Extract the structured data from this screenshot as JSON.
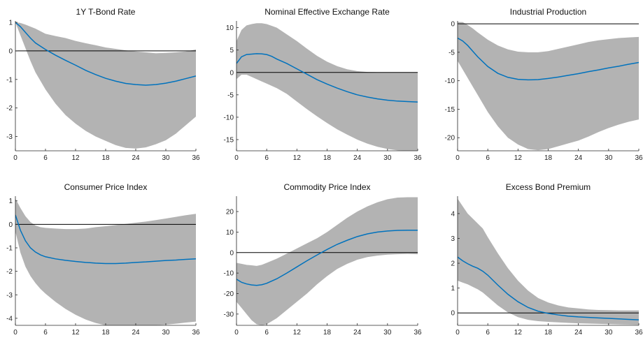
{
  "colors": {
    "band": "#b3b3b3",
    "line": "#0072bd",
    "zero": "#000000"
  },
  "chart_data": [
    {
      "type": "line",
      "title": "1Y T-Bond Rate",
      "xlim": [
        0,
        36
      ],
      "ylim": [
        -3.5,
        1.05
      ],
      "xticks": [
        0,
        6,
        12,
        18,
        24,
        30,
        36
      ],
      "yticks": [
        1,
        0,
        -1,
        -2,
        -3
      ],
      "x": [
        0,
        1,
        2,
        3,
        4,
        6,
        8,
        10,
        12,
        14,
        16,
        18,
        20,
        22,
        24,
        26,
        28,
        30,
        32,
        34,
        36
      ],
      "series": [
        {
          "values": [
            1.0,
            0.85,
            0.65,
            0.45,
            0.28,
            0.05,
            -0.15,
            -0.33,
            -0.5,
            -0.68,
            -0.83,
            -0.96,
            -1.06,
            -1.14,
            -1.18,
            -1.2,
            -1.18,
            -1.13,
            -1.06,
            -0.97,
            -0.88
          ]
        }
      ],
      "band": {
        "lower": [
          1.0,
          0.55,
          0.1,
          -0.35,
          -0.75,
          -1.35,
          -1.85,
          -2.25,
          -2.55,
          -2.8,
          -3.0,
          -3.15,
          -3.3,
          -3.4,
          -3.42,
          -3.38,
          -3.27,
          -3.13,
          -2.9,
          -2.6,
          -2.3
        ],
        "upper": [
          1.0,
          0.98,
          0.92,
          0.85,
          0.78,
          0.6,
          0.52,
          0.45,
          0.35,
          0.27,
          0.2,
          0.12,
          0.07,
          0.02,
          -0.02,
          -0.05,
          -0.08,
          -0.07,
          -0.05,
          -0.02,
          0.05
        ]
      },
      "zero_line": 0
    },
    {
      "type": "line",
      "title": "Nominal Effective Exchange Rate",
      "xlim": [
        0,
        36
      ],
      "ylim": [
        -17.5,
        11.5
      ],
      "xticks": [
        0,
        6,
        12,
        18,
        24,
        30,
        36
      ],
      "yticks": [
        10,
        5,
        0,
        -5,
        -10,
        -15
      ],
      "x": [
        0,
        1,
        2,
        3,
        4,
        5,
        6,
        7,
        8,
        10,
        12,
        14,
        16,
        18,
        20,
        22,
        24,
        26,
        28,
        30,
        32,
        34,
        36
      ],
      "series": [
        {
          "values": [
            2.0,
            3.5,
            4.0,
            4.1,
            4.2,
            4.15,
            4.0,
            3.6,
            3.0,
            2.0,
            0.8,
            -0.4,
            -1.6,
            -2.6,
            -3.5,
            -4.3,
            -5.0,
            -5.5,
            -5.9,
            -6.2,
            -6.4,
            -6.5,
            -6.6
          ]
        }
      ],
      "band": {
        "lower": [
          -1.5,
          -0.5,
          -0.5,
          -1.0,
          -1.5,
          -2.0,
          -2.5,
          -3.0,
          -3.5,
          -4.8,
          -6.5,
          -8.2,
          -9.8,
          -11.3,
          -12.7,
          -13.9,
          -15.0,
          -15.9,
          -16.6,
          -17.1,
          -17.4,
          -17.6,
          -17.8
        ],
        "upper": [
          7.0,
          9.5,
          10.5,
          10.8,
          11.0,
          11.0,
          10.8,
          10.4,
          10.0,
          8.5,
          7.0,
          5.3,
          3.7,
          2.4,
          1.4,
          0.7,
          0.3,
          0.1,
          0.05,
          0.0,
          0.0,
          0.0,
          0.0
        ]
      },
      "zero_line": 0
    },
    {
      "type": "line",
      "title": "Industrial Production",
      "xlim": [
        0,
        36
      ],
      "ylim": [
        -22.3,
        0.5
      ],
      "xticks": [
        0,
        6,
        12,
        18,
        24,
        30,
        36
      ],
      "yticks": [
        0,
        -5,
        -10,
        -15,
        -20
      ],
      "x": [
        0,
        1,
        2,
        3,
        4,
        6,
        8,
        10,
        12,
        14,
        16,
        18,
        20,
        22,
        24,
        26,
        28,
        30,
        32,
        34,
        36
      ],
      "series": [
        {
          "values": [
            -2.5,
            -3.0,
            -3.8,
            -4.8,
            -5.8,
            -7.5,
            -8.7,
            -9.4,
            -9.75,
            -9.85,
            -9.8,
            -9.6,
            -9.35,
            -9.05,
            -8.75,
            -8.4,
            -8.1,
            -7.75,
            -7.45,
            -7.1,
            -6.8
          ]
        }
      ],
      "band": {
        "lower": [
          -6.5,
          -8.0,
          -9.5,
          -11.0,
          -12.5,
          -15.5,
          -18.0,
          -20.0,
          -21.2,
          -22.0,
          -22.2,
          -22.0,
          -21.5,
          -21.0,
          -20.5,
          -19.8,
          -19.0,
          -18.3,
          -17.7,
          -17.2,
          -16.8
        ],
        "upper": [
          0.3,
          0.3,
          -0.2,
          -0.8,
          -1.5,
          -2.8,
          -3.8,
          -4.5,
          -4.9,
          -5.0,
          -5.0,
          -4.8,
          -4.4,
          -4.0,
          -3.6,
          -3.2,
          -2.9,
          -2.7,
          -2.5,
          -2.4,
          -2.3
        ]
      },
      "zero_line": 0
    },
    {
      "type": "line",
      "title": "Consumer Price Index",
      "xlim": [
        0,
        36
      ],
      "ylim": [
        -4.3,
        1.2
      ],
      "xticks": [
        0,
        6,
        12,
        18,
        24,
        30,
        36
      ],
      "yticks": [
        1,
        0,
        -1,
        -2,
        -3,
        -4
      ],
      "x": [
        0,
        1,
        2,
        3,
        4,
        5,
        6,
        8,
        10,
        12,
        14,
        16,
        18,
        20,
        22,
        24,
        26,
        28,
        30,
        32,
        34,
        36
      ],
      "series": [
        {
          "values": [
            0.4,
            -0.25,
            -0.7,
            -1.0,
            -1.18,
            -1.3,
            -1.38,
            -1.47,
            -1.53,
            -1.58,
            -1.62,
            -1.65,
            -1.67,
            -1.67,
            -1.65,
            -1.62,
            -1.6,
            -1.57,
            -1.54,
            -1.52,
            -1.49,
            -1.47
          ]
        }
      ],
      "band": {
        "lower": [
          -0.3,
          -1.2,
          -1.8,
          -2.2,
          -2.5,
          -2.75,
          -2.95,
          -3.3,
          -3.6,
          -3.85,
          -4.05,
          -4.2,
          -4.3,
          -4.35,
          -4.36,
          -4.35,
          -4.33,
          -4.3,
          -4.27,
          -4.23,
          -4.18,
          -4.14
        ],
        "upper": [
          1.1,
          0.7,
          0.35,
          0.1,
          -0.05,
          -0.12,
          -0.15,
          -0.18,
          -0.2,
          -0.2,
          -0.18,
          -0.12,
          -0.08,
          -0.03,
          0.02,
          0.07,
          0.12,
          0.18,
          0.25,
          0.32,
          0.39,
          0.45
        ]
      },
      "zero_line": 0
    },
    {
      "type": "line",
      "title": "Commodity Price Index",
      "xlim": [
        0,
        36
      ],
      "ylim": [
        -35.5,
        27.5
      ],
      "xticks": [
        0,
        6,
        12,
        18,
        24,
        30,
        36
      ],
      "yticks": [
        20,
        10,
        0,
        -10,
        -20,
        -30
      ],
      "x": [
        0,
        1,
        2,
        3,
        4,
        5,
        6,
        8,
        10,
        12,
        14,
        16,
        18,
        20,
        22,
        24,
        26,
        28,
        30,
        32,
        34,
        36
      ],
      "series": [
        {
          "values": [
            -13.0,
            -14.5,
            -15.3,
            -15.8,
            -16.0,
            -15.7,
            -15.0,
            -12.8,
            -10.0,
            -7.0,
            -4.0,
            -1.2,
            1.5,
            4.0,
            6.0,
            7.8,
            9.1,
            10.0,
            10.5,
            10.8,
            10.9,
            10.9
          ]
        }
      ],
      "band": {
        "lower": [
          -24.0,
          -27.0,
          -30.0,
          -33.0,
          -35.0,
          -35.5,
          -35.0,
          -32.0,
          -28.0,
          -24.0,
          -20.0,
          -15.5,
          -11.5,
          -8.0,
          -5.5,
          -3.5,
          -2.2,
          -1.5,
          -1.0,
          -0.8,
          -0.7,
          -0.8
        ],
        "upper": [
          -5.0,
          -5.5,
          -6.0,
          -6.2,
          -6.5,
          -6.0,
          -5.0,
          -3.0,
          -0.5,
          2.0,
          4.5,
          7.0,
          10.0,
          13.5,
          17.0,
          20.0,
          22.5,
          24.5,
          26.0,
          26.8,
          27.0,
          27.0
        ]
      },
      "zero_line": 0
    },
    {
      "type": "line",
      "title": "Excess Bond Premium",
      "xlim": [
        0,
        36
      ],
      "ylim": [
        -0.5,
        4.7
      ],
      "xticks": [
        0,
        6,
        12,
        18,
        24,
        30,
        36
      ],
      "yticks": [
        4,
        3,
        2,
        1,
        0
      ],
      "x": [
        0,
        1,
        2,
        3,
        4,
        5,
        6,
        8,
        10,
        12,
        14,
        16,
        18,
        20,
        22,
        24,
        26,
        28,
        30,
        32,
        34,
        36
      ],
      "series": [
        {
          "values": [
            2.25,
            2.1,
            1.98,
            1.88,
            1.8,
            1.68,
            1.52,
            1.12,
            0.75,
            0.45,
            0.22,
            0.07,
            -0.02,
            -0.08,
            -0.13,
            -0.16,
            -0.18,
            -0.2,
            -0.22,
            -0.24,
            -0.26,
            -0.28
          ]
        }
      ],
      "band": {
        "lower": [
          1.3,
          1.22,
          1.15,
          1.05,
          0.95,
          0.82,
          0.65,
          0.3,
          0.02,
          -0.17,
          -0.28,
          -0.33,
          -0.36,
          -0.38,
          -0.4,
          -0.42,
          -0.43,
          -0.44,
          -0.45,
          -0.46,
          -0.47,
          -0.48
        ],
        "upper": [
          4.6,
          4.3,
          4.0,
          3.8,
          3.6,
          3.4,
          3.05,
          2.4,
          1.8,
          1.3,
          0.9,
          0.6,
          0.42,
          0.3,
          0.22,
          0.18,
          0.14,
          0.12,
          0.11,
          0.1,
          0.1,
          0.1
        ]
      },
      "zero_line": 0
    }
  ]
}
